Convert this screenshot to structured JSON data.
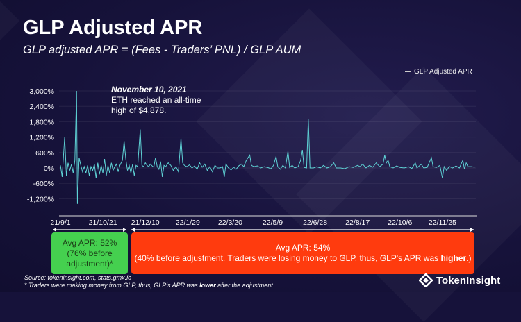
{
  "title": "GLP Adjusted APR",
  "subtitle": "GLP adjusted APR = (Fees - Traders’ PNL) / GLP AUM",
  "annotation": {
    "date": "November 10, 2021",
    "line1": "ETH reached an all-time",
    "line2": "high of $4,878."
  },
  "boxes": {
    "green": {
      "l1": "Avg APR: 52%",
      "l2": "(76% before",
      "l3": "adjustment)*",
      "color": "#45d04f"
    },
    "red": {
      "l1": "Avg APR: 54%",
      "l2a": "(40% before adjustment. Traders were losing money to GLP, thus, GLP's APR was ",
      "l2b": "higher",
      "l2c": ".)",
      "color": "#ff3b0e"
    }
  },
  "footer": {
    "source": "Source: tokeninsight.com, stats.gmx.io",
    "note_a": "* Traders were making money from GLP, thus, GLP's APR was ",
    "note_b": "lower",
    "note_c": " after the adjustment.",
    "logo": "TokenInsight"
  },
  "chart_data": {
    "type": "line",
    "title": "GLP Adjusted APR",
    "legend": [
      {
        "name": "GLP Adjusted APR",
        "position": "top-right"
      }
    ],
    "line_color": "#5fd3d6",
    "xlabel": "",
    "ylabel": "",
    "ylim": [
      -1400,
      3100
    ],
    "yticks": [
      3000,
      2400,
      1800,
      1200,
      600,
      0,
      -600,
      -1200
    ],
    "ytick_labels": [
      "3,000%",
      "2,400%",
      "1,800%",
      "1,200%",
      "600%",
      "0%",
      "-600%",
      "-1,200%"
    ],
    "xlim_days": [
      0,
      490
    ],
    "xticks_days": [
      0,
      50,
      100,
      150,
      200,
      250,
      300,
      350,
      400,
      450
    ],
    "xtick_labels": [
      "21/9/1",
      "21/10/21",
      "21/12/10",
      "22/1/29",
      "22/3/20",
      "22/5/9",
      "22/6/28",
      "22/8/17",
      "22/10/6",
      "22/11/25"
    ],
    "grid": true,
    "points": [
      [
        0,
        100
      ],
      [
        2,
        -350
      ],
      [
        5,
        1200
      ],
      [
        7,
        -300
      ],
      [
        9,
        200
      ],
      [
        11,
        -100
      ],
      [
        13,
        150
      ],
      [
        15,
        -200
      ],
      [
        17,
        300
      ],
      [
        19,
        3000
      ],
      [
        20,
        -1400
      ],
      [
        22,
        400
      ],
      [
        24,
        100
      ],
      [
        26,
        -150
      ],
      [
        28,
        50
      ],
      [
        30,
        -200
      ],
      [
        32,
        100
      ],
      [
        34,
        -300
      ],
      [
        36,
        50
      ],
      [
        38,
        -100
      ],
      [
        40,
        150
      ],
      [
        42,
        -400
      ],
      [
        44,
        200
      ],
      [
        46,
        -250
      ],
      [
        48,
        100
      ],
      [
        50,
        -200
      ],
      [
        52,
        350
      ],
      [
        54,
        -300
      ],
      [
        56,
        100
      ],
      [
        58,
        -200
      ],
      [
        60,
        200
      ],
      [
        62,
        -100
      ],
      [
        64,
        50
      ],
      [
        66,
        150
      ],
      [
        68,
        -150
      ],
      [
        70,
        100
      ],
      [
        73,
        300
      ],
      [
        75,
        1050
      ],
      [
        77,
        350
      ],
      [
        79,
        -100
      ],
      [
        81,
        100
      ],
      [
        83,
        -200
      ],
      [
        85,
        150
      ],
      [
        87,
        -300
      ],
      [
        89,
        100
      ],
      [
        91,
        50
      ],
      [
        94,
        1500
      ],
      [
        96,
        100
      ],
      [
        98,
        50
      ],
      [
        100,
        200
      ],
      [
        102,
        100
      ],
      [
        104,
        50
      ],
      [
        106,
        150
      ],
      [
        108,
        80
      ],
      [
        110,
        30
      ],
      [
        112,
        400
      ],
      [
        114,
        50
      ],
      [
        116,
        -50
      ],
      [
        118,
        250
      ],
      [
        120,
        -350
      ],
      [
        122,
        100
      ],
      [
        124,
        50
      ],
      [
        127,
        200
      ],
      [
        130,
        100
      ],
      [
        133,
        -100
      ],
      [
        136,
        50
      ],
      [
        139,
        -150
      ],
      [
        142,
        1150
      ],
      [
        144,
        200
      ],
      [
        146,
        100
      ],
      [
        149,
        50
      ],
      [
        152,
        120
      ],
      [
        155,
        0
      ],
      [
        158,
        80
      ],
      [
        161,
        -50
      ],
      [
        164,
        200
      ],
      [
        167,
        30
      ],
      [
        170,
        150
      ],
      [
        173,
        -100
      ],
      [
        176,
        50
      ],
      [
        179,
        -150
      ],
      [
        182,
        100
      ],
      [
        185,
        0
      ],
      [
        188,
        0
      ],
      [
        191,
        50
      ],
      [
        193,
        -350
      ],
      [
        195,
        150
      ],
      [
        198,
        0
      ],
      [
        201,
        -80
      ],
      [
        204,
        30
      ],
      [
        207,
        -50
      ],
      [
        210,
        80
      ],
      [
        213,
        150
      ],
      [
        216,
        50
      ],
      [
        219,
        300
      ],
      [
        223,
        500
      ],
      [
        225,
        100
      ],
      [
        228,
        50
      ],
      [
        232,
        80
      ],
      [
        236,
        0
      ],
      [
        240,
        50
      ],
      [
        244,
        20
      ],
      [
        248,
        -30
      ],
      [
        251,
        100
      ],
      [
        254,
        450
      ],
      [
        256,
        50
      ],
      [
        259,
        -50
      ],
      [
        262,
        100
      ],
      [
        265,
        0
      ],
      [
        268,
        650
      ],
      [
        270,
        20
      ],
      [
        273,
        100
      ],
      [
        276,
        0
      ],
      [
        280,
        50
      ],
      [
        283,
        300
      ],
      [
        285,
        700
      ],
      [
        287,
        20
      ],
      [
        290,
        0
      ],
      [
        292,
        1900
      ],
      [
        294,
        0
      ],
      [
        298,
        0
      ],
      [
        302,
        50
      ],
      [
        306,
        0
      ],
      [
        310,
        100
      ],
      [
        314,
        0
      ],
      [
        318,
        50
      ],
      [
        322,
        200
      ],
      [
        325,
        0
      ],
      [
        330,
        0
      ],
      [
        335,
        -30
      ],
      [
        340,
        50
      ],
      [
        345,
        20
      ],
      [
        350,
        100
      ],
      [
        353,
        50
      ],
      [
        356,
        150
      ],
      [
        360,
        0
      ],
      [
        364,
        100
      ],
      [
        368,
        30
      ],
      [
        372,
        200
      ],
      [
        376,
        50
      ],
      [
        380,
        150
      ],
      [
        382,
        500
      ],
      [
        384,
        200
      ],
      [
        386,
        300
      ],
      [
        388,
        50
      ],
      [
        392,
        0
      ],
      [
        396,
        80
      ],
      [
        400,
        20
      ],
      [
        405,
        0
      ],
      [
        410,
        50
      ],
      [
        414,
        -20
      ],
      [
        418,
        200
      ],
      [
        420,
        0
      ],
      [
        425,
        150
      ],
      [
        428,
        0
      ],
      [
        432,
        20
      ],
      [
        437,
        400
      ],
      [
        439,
        50
      ],
      [
        443,
        20
      ],
      [
        447,
        100
      ],
      [
        450,
        -400
      ],
      [
        452,
        50
      ],
      [
        455,
        -100
      ],
      [
        458,
        60
      ],
      [
        462,
        0
      ],
      [
        466,
        80
      ],
      [
        470,
        0
      ],
      [
        474,
        300
      ],
      [
        476,
        -50
      ],
      [
        478,
        200
      ],
      [
        480,
        50
      ],
      [
        484,
        50
      ],
      [
        488,
        30
      ]
    ]
  }
}
